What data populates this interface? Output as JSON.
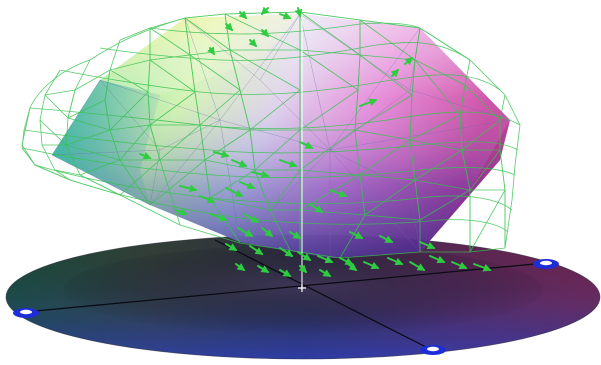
{
  "figure": {
    "background": "#ffffff",
    "wireframe_color": "#37c24f",
    "vector_color": "#2ecc40",
    "axis_color": "#e8e8ff",
    "handle_color": "#1e2dd8",
    "vertical_axis_color": "#ffffff"
  }
}
